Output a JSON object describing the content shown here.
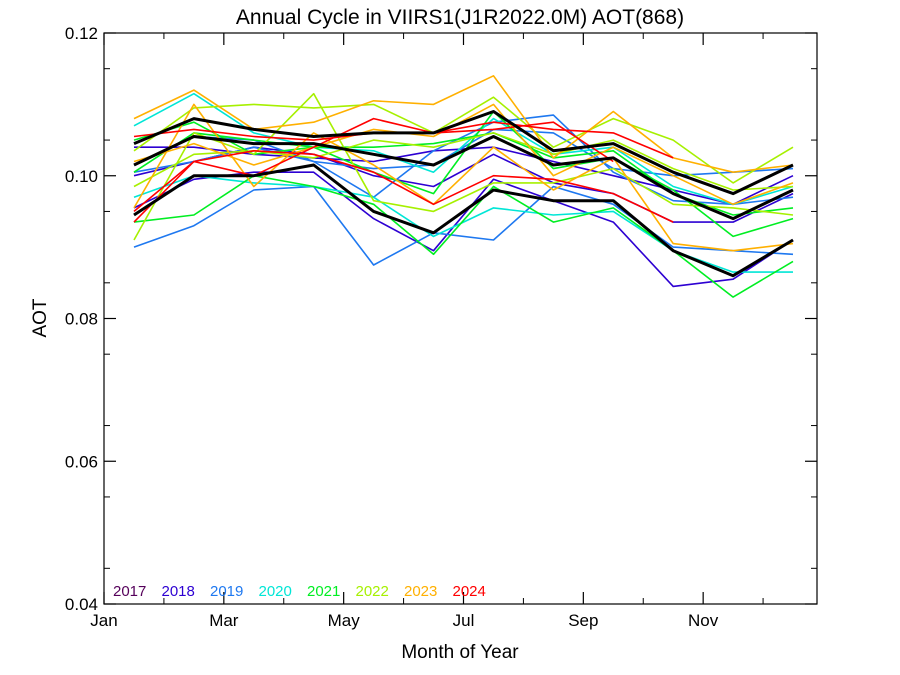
{
  "chart_data": {
    "type": "line",
    "title": "Annual Cycle in VIIRS1(J1R2022.0M) AOT(868)",
    "xlabel": "Month of Year",
    "ylabel": "AOT",
    "xlim": [
      1,
      12.9
    ],
    "ylim": [
      0.04,
      0.12
    ],
    "x_ticks": [
      {
        "value": 1,
        "label": "Jan"
      },
      {
        "value": 3,
        "label": "Mar"
      },
      {
        "value": 5,
        "label": "May"
      },
      {
        "value": 7,
        "label": "Jul"
      },
      {
        "value": 9,
        "label": "Sep"
      },
      {
        "value": 11,
        "label": "Nov"
      }
    ],
    "y_ticks": [
      {
        "value": 0.04,
        "label": "0.04"
      },
      {
        "value": 0.06,
        "label": "0.06"
      },
      {
        "value": 0.08,
        "label": "0.08"
      },
      {
        "value": 0.1,
        "label": "0.10"
      },
      {
        "value": 0.12,
        "label": "0.12"
      }
    ],
    "legend_position": "bottom-left",
    "legend": [
      {
        "label": "2017",
        "color": "#55005a"
      },
      {
        "label": "2018",
        "color": "#2d00d2"
      },
      {
        "label": "2019",
        "color": "#1e78f0"
      },
      {
        "label": "2020",
        "color": "#00e6d6"
      },
      {
        "label": "2021",
        "color": "#00ee22"
      },
      {
        "label": "2022",
        "color": "#a6f000"
      },
      {
        "label": "2023",
        "color": "#ffb000"
      },
      {
        "label": "2024",
        "color": "#ff0000"
      }
    ],
    "x": [
      1.5,
      2.5,
      3.5,
      4.5,
      5.5,
      6.5,
      7.5,
      8.5,
      9.5,
      10.5,
      11.5,
      12.5
    ],
    "series": [
      {
        "color": "#2d00d2",
        "values": [
          0.0955,
          0.0995,
          0.1005,
          0.1005,
          0.094,
          0.0895,
          0.0995,
          0.0965,
          0.0935,
          0.0845,
          0.0855,
          0.091
        ]
      },
      {
        "color": "#2d00d2",
        "values": [
          0.1,
          0.102,
          0.104,
          0.103,
          0.1,
          0.0985,
          0.103,
          0.099,
          0.0975,
          0.0935,
          0.0935,
          0.0975
        ]
      },
      {
        "color": "#2d00d2",
        "values": [
          0.104,
          0.104,
          0.103,
          0.1025,
          0.102,
          0.1035,
          0.104,
          0.102,
          0.1,
          0.098,
          0.096,
          0.1
        ]
      },
      {
        "color": "#1e78f0",
        "values": [
          0.09,
          0.093,
          0.098,
          0.0985,
          0.0875,
          0.092,
          0.091,
          0.0985,
          0.096,
          0.09,
          0.0895,
          0.089
        ]
      },
      {
        "color": "#1e78f0",
        "values": [
          0.1005,
          0.102,
          0.104,
          0.102,
          0.097,
          0.1035,
          0.1075,
          0.1085,
          0.1005,
          0.0965,
          0.096,
          0.097
        ]
      },
      {
        "color": "#1e78f0",
        "values": [
          0.1015,
          0.1055,
          0.105,
          0.102,
          0.101,
          0.1015,
          0.1065,
          0.106,
          0.101,
          0.1,
          0.1005,
          0.101
        ]
      },
      {
        "color": "#00e6d6",
        "values": [
          0.107,
          0.1115,
          0.106,
          0.104,
          0.1035,
          0.1005,
          0.108,
          0.103,
          0.104,
          0.0985,
          0.096,
          0.0985
        ]
      },
      {
        "color": "#00e6d6",
        "values": [
          0.097,
          0.1,
          0.099,
          0.0985,
          0.097,
          0.0915,
          0.0955,
          0.0945,
          0.095,
          0.0895,
          0.0865,
          0.0865
        ]
      },
      {
        "color": "#00ee22",
        "values": [
          0.0935,
          0.0945,
          0.1,
          0.0985,
          0.096,
          0.089,
          0.0985,
          0.0935,
          0.0955,
          0.0895,
          0.083,
          0.088
        ]
      },
      {
        "color": "#00ee22",
        "values": [
          0.1005,
          0.106,
          0.105,
          0.104,
          0.1005,
          0.0975,
          0.109,
          0.101,
          0.1025,
          0.098,
          0.0915,
          0.094
        ]
      },
      {
        "color": "#00ee22",
        "values": [
          0.105,
          0.1075,
          0.103,
          0.104,
          0.104,
          0.1045,
          0.106,
          0.1025,
          0.1035,
          0.0975,
          0.0945,
          0.0955
        ]
      },
      {
        "color": "#a6f000",
        "values": [
          0.091,
          0.106,
          0.103,
          0.1115,
          0.0965,
          0.095,
          0.099,
          0.099,
          0.101,
          0.096,
          0.0955,
          0.0945
        ]
      },
      {
        "color": "#a6f000",
        "values": [
          0.1035,
          0.1095,
          0.11,
          0.1095,
          0.11,
          0.106,
          0.111,
          0.104,
          0.108,
          0.105,
          0.099,
          0.104
        ]
      },
      {
        "color": "#a6f000",
        "values": [
          0.0985,
          0.103,
          0.1035,
          0.1025,
          0.105,
          0.104,
          0.106,
          0.103,
          0.105,
          0.101,
          0.098,
          0.0985
        ]
      },
      {
        "color": "#ffb000",
        "values": [
          0.108,
          0.112,
          0.1065,
          0.1075,
          0.1105,
          0.11,
          0.114,
          0.1025,
          0.109,
          0.1025,
          0.1005,
          0.1015
        ]
      },
      {
        "color": "#ffb000",
        "values": [
          0.0955,
          0.11,
          0.0985,
          0.106,
          0.1015,
          0.096,
          0.104,
          0.098,
          0.1025,
          0.0905,
          0.0895,
          0.0905
        ]
      },
      {
        "color": "#ffb000",
        "values": [
          0.102,
          0.1045,
          0.1015,
          0.104,
          0.1065,
          0.1055,
          0.11,
          0.1,
          0.104,
          0.1,
          0.096,
          0.099
        ]
      },
      {
        "color": "#ff0000",
        "values": [
          0.0935,
          0.102,
          0.1,
          0.104,
          0.108,
          0.106,
          0.1075,
          0.1065,
          0.106,
          0.1025,
          null,
          null
        ]
      },
      {
        "color": "#ff0000",
        "values": [
          0.1055,
          0.1065,
          0.1055,
          0.105,
          0.106,
          0.106,
          0.1065,
          0.1075,
          0.102,
          null,
          null,
          null
        ]
      },
      {
        "color": "#ff0000",
        "values": [
          0.095,
          0.102,
          0.1035,
          0.103,
          0.1005,
          0.096,
          0.1,
          0.0995,
          0.0975,
          0.0935,
          null,
          null
        ]
      },
      {
        "color": "#000000",
        "width": 3,
        "values": [
          0.1045,
          0.108,
          0.1065,
          0.1055,
          0.106,
          0.106,
          0.109,
          0.1035,
          0.1045,
          0.1005,
          0.0975,
          0.1015
        ]
      },
      {
        "color": "#000000",
        "width": 3,
        "values": [
          0.1015,
          0.1055,
          0.1045,
          0.1045,
          0.103,
          0.1015,
          0.1055,
          0.1015,
          0.1025,
          0.0975,
          0.094,
          0.098
        ]
      },
      {
        "color": "#000000",
        "width": 3,
        "values": [
          0.0945,
          0.1,
          0.1,
          0.1015,
          0.095,
          0.092,
          0.098,
          0.0965,
          0.0965,
          0.0895,
          0.086,
          0.091
        ]
      }
    ]
  }
}
